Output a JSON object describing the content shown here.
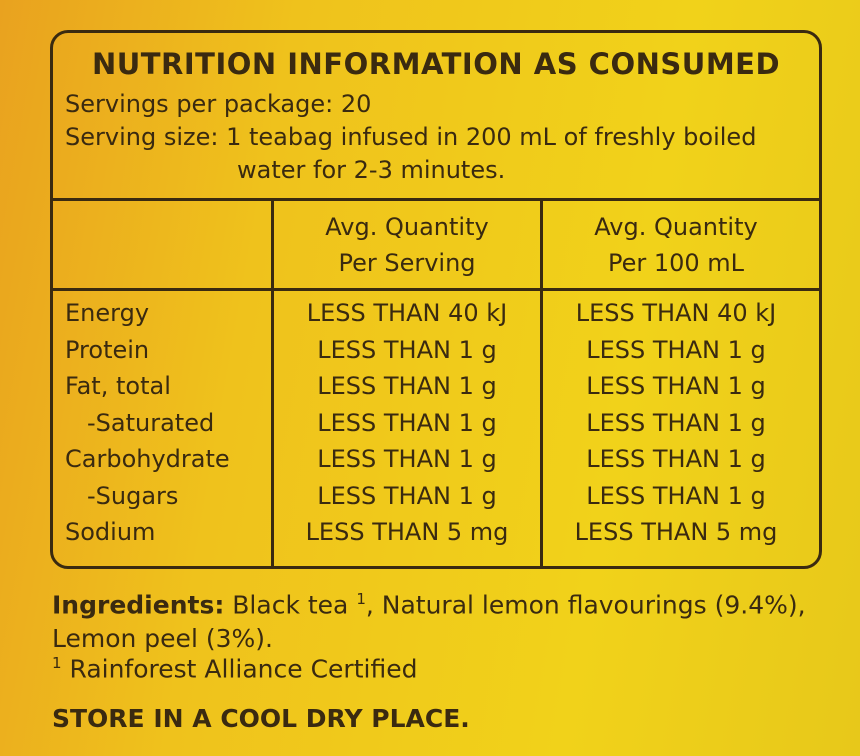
{
  "header": {
    "title": "NUTRITION INFORMATION AS CONSUMED",
    "servings": "Servings per package: 20",
    "serving_size": [
      "Serving size: 1 teabag infused in 200 mL of freshly boiled",
      "water for 2-3 minutes."
    ]
  },
  "table": {
    "columns": [
      [
        "Avg. Quantity",
        "Per Serving"
      ],
      [
        "Avg. Quantity",
        "Per 100 mL"
      ]
    ],
    "rows": [
      [
        "Energy",
        "LESS THAN 40 kJ",
        "LESS THAN 40 kJ"
      ],
      [
        "Protein",
        "LESS THAN 1 g",
        "LESS THAN 1 g"
      ],
      [
        "Fat, total",
        "LESS THAN 1 g",
        "LESS THAN 1 g"
      ],
      [
        "-Saturated",
        "LESS THAN 1 g",
        "LESS THAN 1 g"
      ],
      [
        "Carbohydrate",
        "LESS THAN 1 g",
        "LESS THAN 1 g"
      ],
      [
        "-Sugars",
        "LESS THAN 1 g",
        "LESS THAN 1 g"
      ],
      [
        "Sodium",
        "LESS THAN 5 mg",
        "LESS THAN 5 mg"
      ]
    ]
  },
  "ingredients": {
    "label": "Ingredients:",
    "before": "Black tea",
    "marker": "1",
    "after": ", Natural lemon flavourings (9.4%), Lemon peel (3%)."
  },
  "footnote": {
    "marker": "1",
    "text": "Rainforest Alliance Certified"
  },
  "storage": "STORE IN A COOL DRY PLACE."
}
